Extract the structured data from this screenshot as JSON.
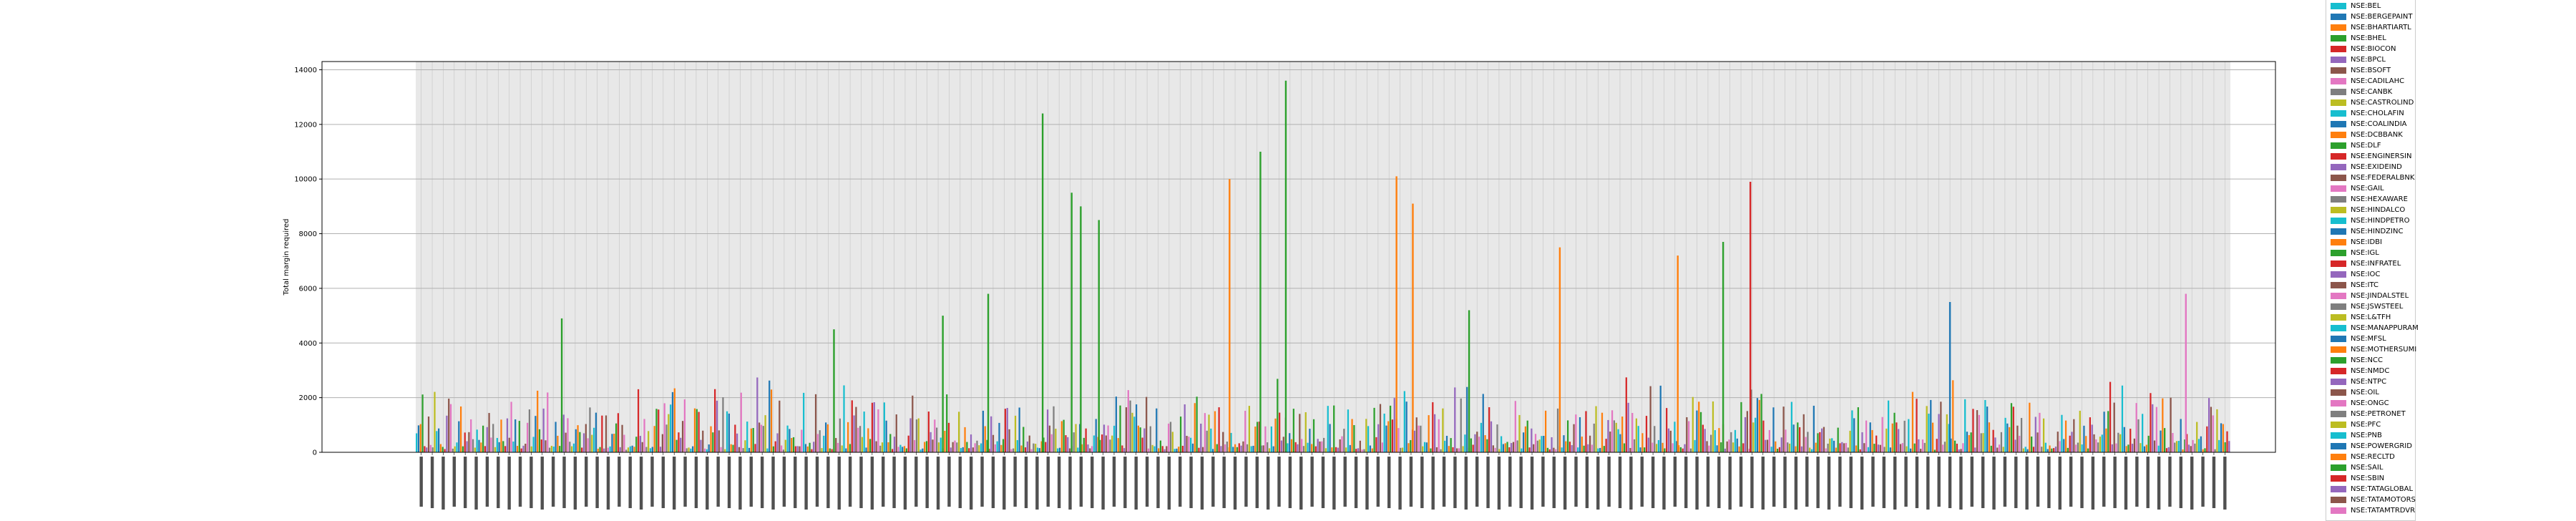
{
  "chart_data": {
    "type": "bar",
    "title": "",
    "xlabel": "",
    "ylabel": "Total margin required",
    "ylim": [
      0,
      14300
    ],
    "yticks": [
      0,
      2000,
      4000,
      6000,
      8000,
      10000,
      12000,
      14000
    ],
    "grid": true,
    "legend_placement": "right",
    "x_tick_count": 165,
    "series": [
      {
        "name": "NSE:BEL",
        "color": "#17becf"
      },
      {
        "name": "NSE:BERGEPAINT",
        "color": "#1f77b4"
      },
      {
        "name": "NSE:BHARTIARTL",
        "color": "#ff7f0e"
      },
      {
        "name": "NSE:BHEL",
        "color": "#2ca02c"
      },
      {
        "name": "NSE:BIOCON",
        "color": "#d62728"
      },
      {
        "name": "NSE:BPCL",
        "color": "#9467bd"
      },
      {
        "name": "NSE:BSOFT",
        "color": "#8c564b"
      },
      {
        "name": "NSE:CADILAHC",
        "color": "#e377c2"
      },
      {
        "name": "NSE:CANBK",
        "color": "#7f7f7f"
      },
      {
        "name": "NSE:CASTROLIND",
        "color": "#bcbd22"
      },
      {
        "name": "NSE:CHOLAFIN",
        "color": "#17becf"
      },
      {
        "name": "NSE:COALINDIA",
        "color": "#1f77b4"
      },
      {
        "name": "NSE:DCBBANK",
        "color": "#ff7f0e"
      },
      {
        "name": "NSE:DLF",
        "color": "#2ca02c"
      },
      {
        "name": "NSE:ENGINERSIN",
        "color": "#d62728"
      },
      {
        "name": "NSE:EXIDEIND",
        "color": "#9467bd"
      },
      {
        "name": "NSE:FEDERALBNK",
        "color": "#8c564b"
      },
      {
        "name": "NSE:GAIL",
        "color": "#e377c2"
      },
      {
        "name": "NSE:HEXAWARE",
        "color": "#7f7f7f"
      },
      {
        "name": "NSE:HINDALCO",
        "color": "#bcbd22"
      },
      {
        "name": "NSE:HINDPETRO",
        "color": "#17becf"
      },
      {
        "name": "NSE:HINDZINC",
        "color": "#1f77b4"
      },
      {
        "name": "NSE:IDBI",
        "color": "#ff7f0e"
      },
      {
        "name": "NSE:IGL",
        "color": "#2ca02c"
      },
      {
        "name": "NSE:INFRATEL",
        "color": "#d62728"
      },
      {
        "name": "NSE:IOC",
        "color": "#9467bd"
      },
      {
        "name": "NSE:ITC",
        "color": "#8c564b"
      },
      {
        "name": "NSE:JINDALSTEL",
        "color": "#e377c2"
      },
      {
        "name": "NSE:JSWSTEEL",
        "color": "#7f7f7f"
      },
      {
        "name": "NSE:L&TFH",
        "color": "#bcbd22"
      },
      {
        "name": "NSE:MANAPPURAM",
        "color": "#17becf"
      },
      {
        "name": "NSE:MFSL",
        "color": "#1f77b4"
      },
      {
        "name": "NSE:MOTHERSUMI",
        "color": "#ff7f0e"
      },
      {
        "name": "NSE:NCC",
        "color": "#2ca02c"
      },
      {
        "name": "NSE:NMDC",
        "color": "#d62728"
      },
      {
        "name": "NSE:NTPC",
        "color": "#9467bd"
      },
      {
        "name": "NSE:OIL",
        "color": "#8c564b"
      },
      {
        "name": "NSE:ONGC",
        "color": "#e377c2"
      },
      {
        "name": "NSE:PETRONET",
        "color": "#7f7f7f"
      },
      {
        "name": "NSE:PFC",
        "color": "#bcbd22"
      },
      {
        "name": "NSE:PNB",
        "color": "#17becf"
      },
      {
        "name": "NSE:POWERGRID",
        "color": "#1f77b4"
      },
      {
        "name": "NSE:RECLTD",
        "color": "#ff7f0e"
      },
      {
        "name": "NSE:SAIL",
        "color": "#2ca02c"
      },
      {
        "name": "NSE:SBIN",
        "color": "#d62728"
      },
      {
        "name": "NSE:TATAGLOBAL",
        "color": "#9467bd"
      },
      {
        "name": "NSE:TATAMOTORS",
        "color": "#8c564b"
      },
      {
        "name": "NSE:TATAMTRDVR",
        "color": "#e377c2"
      }
    ],
    "notable_peaks": [
      {
        "x_position": 0.345,
        "value": 12400,
        "series": "NSE:BHEL"
      },
      {
        "x_position": 0.479,
        "value": 13600,
        "series": "NSE:BHEL"
      },
      {
        "x_position": 0.465,
        "value": 11000,
        "series": "NSE:BHEL"
      },
      {
        "x_position": 0.448,
        "value": 10000,
        "series": "NSE:BHARTIARTL"
      },
      {
        "x_position": 0.54,
        "value": 10100,
        "series": "NSE:BHARTIARTL"
      },
      {
        "x_position": 0.549,
        "value": 9100,
        "series": "NSE:BHARTIARTL"
      },
      {
        "x_position": 0.361,
        "value": 9500,
        "series": "NSE:BHEL"
      },
      {
        "x_position": 0.366,
        "value": 9000,
        "series": "NSE:BHEL"
      },
      {
        "x_position": 0.376,
        "value": 8500,
        "series": "NSE:BHEL"
      },
      {
        "x_position": 0.735,
        "value": 9900,
        "series": "NSE:BIOCON"
      },
      {
        "x_position": 0.72,
        "value": 7700,
        "series": "NSE:BHEL"
      },
      {
        "x_position": 0.63,
        "value": 7500,
        "series": "NSE:BHARTIARTL"
      },
      {
        "x_position": 0.695,
        "value": 7200,
        "series": "NSE:BHARTIARTL"
      },
      {
        "x_position": 0.58,
        "value": 5200,
        "series": "NSE:BHEL"
      },
      {
        "x_position": 0.845,
        "value": 5500,
        "series": "NSE:BERGEPAINT"
      },
      {
        "x_position": 0.975,
        "value": 5800,
        "series": "NSE:CADILAHC"
      },
      {
        "x_position": 0.08,
        "value": 4900,
        "series": "NSE:BHEL"
      },
      {
        "x_position": 0.23,
        "value": 4500,
        "series": "NSE:BHEL"
      },
      {
        "x_position": 0.29,
        "value": 5000,
        "series": "NSE:BHEL"
      },
      {
        "x_position": 0.315,
        "value": 5800,
        "series": "NSE:BHEL"
      }
    ]
  }
}
